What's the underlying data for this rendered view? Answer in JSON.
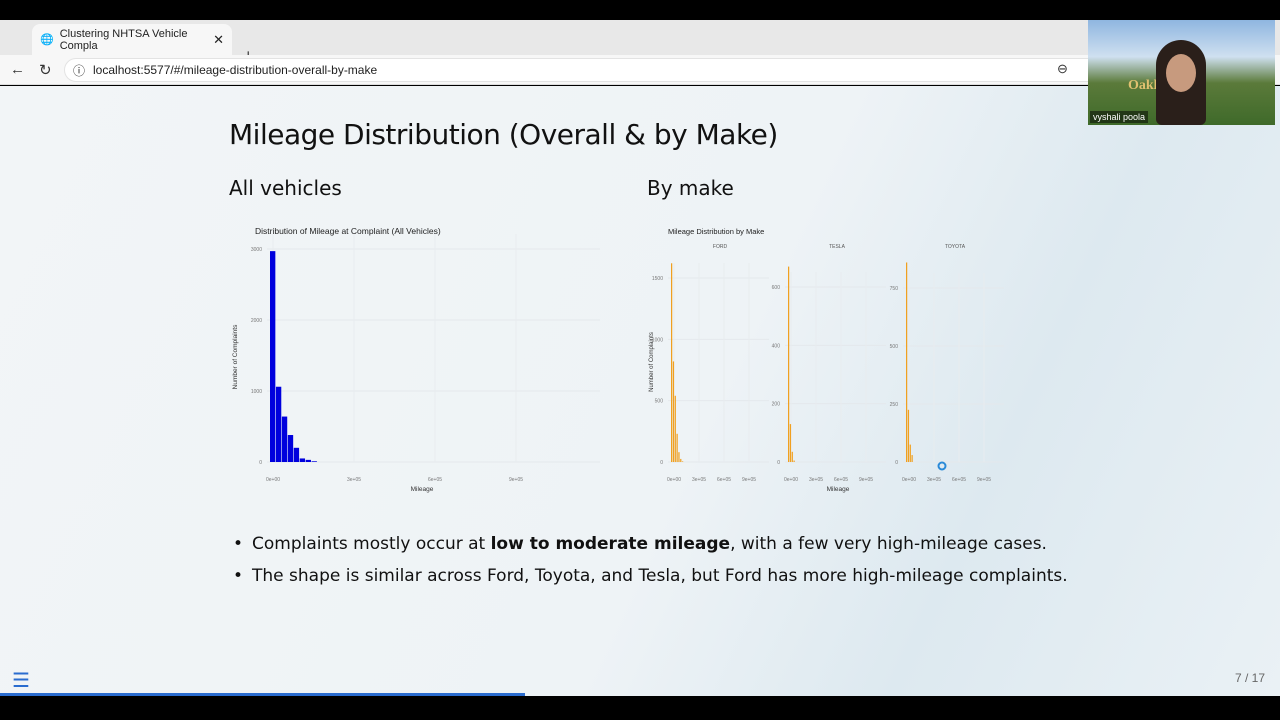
{
  "browser": {
    "tab_title": "Clustering NHTSA Vehicle Compla",
    "url": "localhost:5577/#/mileage-distribution-overall-by-make"
  },
  "slide": {
    "title": "Mileage Distribution (Overall & by Make)",
    "left_heading": "All vehicles",
    "right_heading": "By make",
    "bullets": [
      {
        "pre": "Complaints mostly occur at ",
        "bold": "low to moderate mileage",
        "post": ", with a few very high-mileage cases."
      },
      {
        "pre": "The shape is similar across Ford, Toyota, and Tesla, but Ford has more high-mileage complaints.",
        "bold": "",
        "post": ""
      }
    ],
    "page_number": "7 / 17",
    "progress": 0.41
  },
  "webcam": {
    "name": "vyshali poola",
    "sign_text": "Oakl"
  },
  "chart_data": [
    {
      "type": "bar",
      "title": "Distribution of Mileage at Complaint (All Vehicles)",
      "xlabel": "Mileage",
      "ylabel": "Number of Complaints",
      "color": "#0000dd",
      "x_ticks": [
        "0e+00",
        "3e+05",
        "6e+05",
        "9e+05"
      ],
      "y_ticks": [
        "0",
        "1000",
        "2000",
        "3000"
      ],
      "ylim": [
        0,
        3000
      ],
      "xlim": [
        0,
        900000
      ],
      "bin_width": 22000,
      "x": [
        0,
        22000,
        44000,
        66000,
        88000,
        110000,
        132000,
        154000
      ],
      "values": [
        2970,
        1060,
        640,
        380,
        200,
        50,
        30,
        10
      ]
    },
    {
      "type": "bar",
      "title": "Mileage Distribution by Make",
      "xlabel": "Mileage",
      "ylabel": "Number of Complaints",
      "color": "#f0a020",
      "bin_width": 22000,
      "x_ticks": [
        "0e+00",
        "3e+05",
        "6e+05",
        "9e+05"
      ],
      "facets": [
        {
          "name": "FORD",
          "y_ticks": [
            0,
            500,
            1000,
            1500
          ],
          "x": [
            0,
            22000,
            44000,
            66000,
            88000,
            110000,
            132000
          ],
          "values": [
            1620,
            820,
            540,
            230,
            80,
            25,
            5
          ]
        },
        {
          "name": "TESLA",
          "y_ticks": [
            0,
            200,
            400,
            600
          ],
          "x": [
            0,
            22000,
            44000,
            66000
          ],
          "values": [
            670,
            130,
            35,
            5
          ]
        },
        {
          "name": "TOYOTA",
          "y_ticks": [
            0,
            250,
            500,
            750
          ],
          "x": [
            0,
            22000,
            44000,
            66000
          ],
          "values": [
            860,
            225,
            75,
            30
          ]
        }
      ]
    }
  ]
}
